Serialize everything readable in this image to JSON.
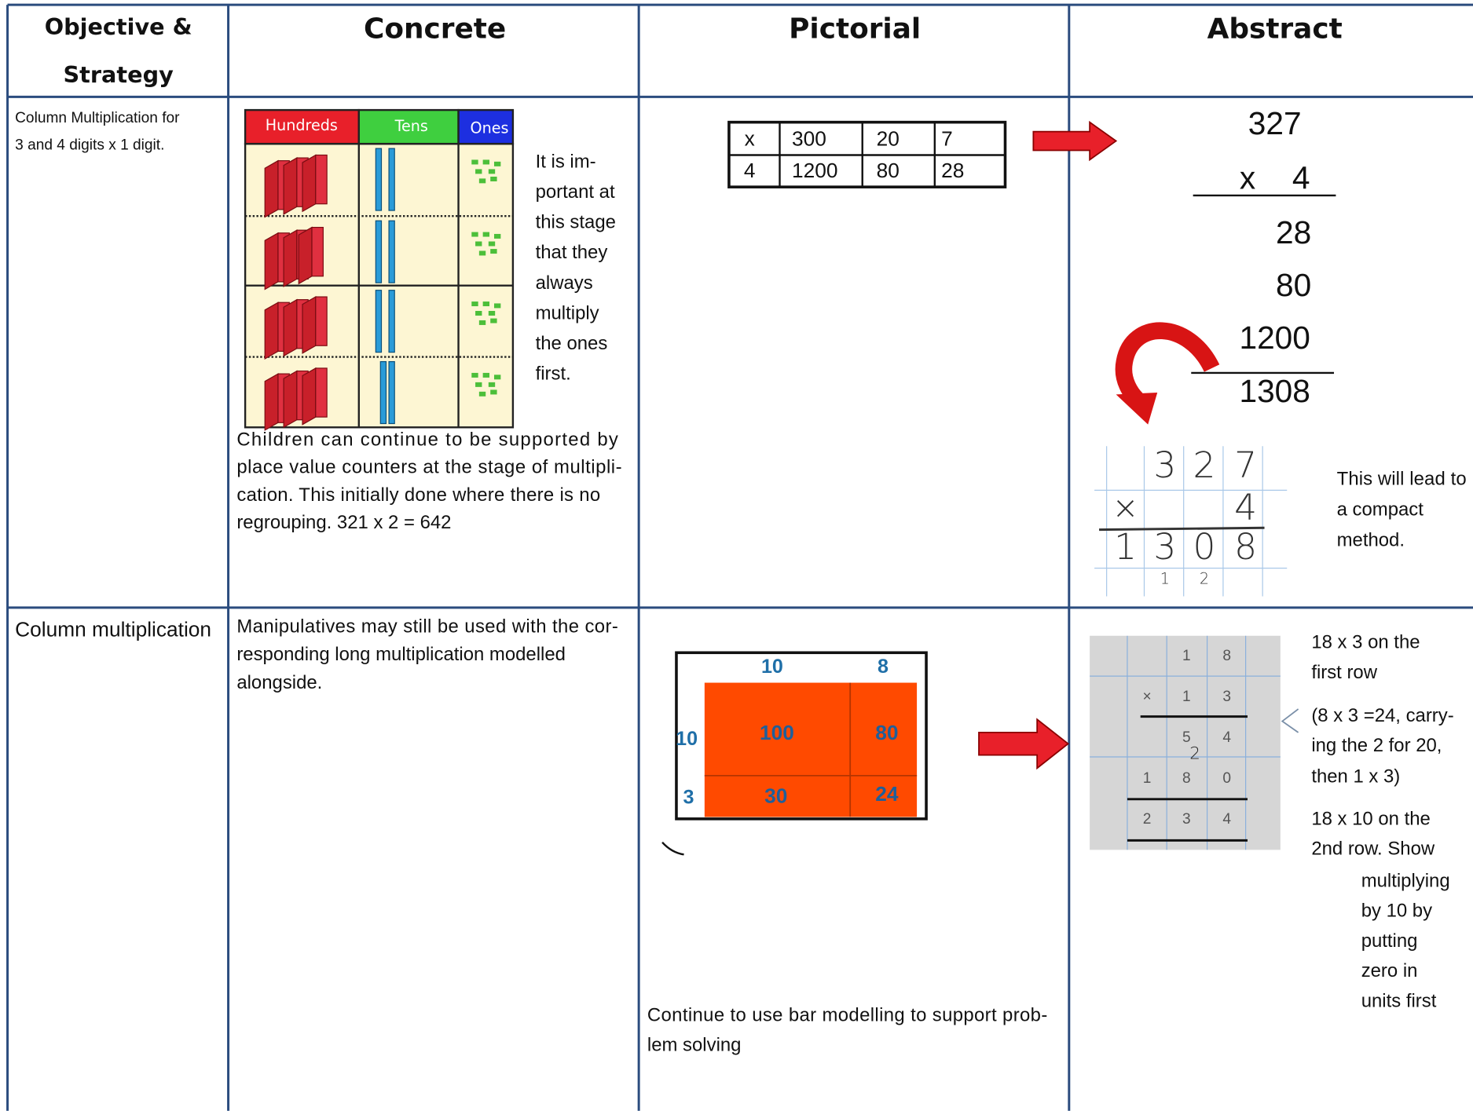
{
  "header": {
    "objective": [
      "Objective &",
      "Strategy"
    ],
    "concrete": "Concrete",
    "pictorial": "Pictorial",
    "abstract": "Abstract"
  },
  "rows": [
    {
      "objective": [
        "Column Multiplication for",
        "3 and 4 digits x 1 digit."
      ],
      "concrete": {
        "chart_headers": [
          "Hundreds",
          "Tens",
          "Ones"
        ],
        "note": [
          "It is im-",
          "portant at",
          "this stage",
          "that they",
          "always",
          "multiply",
          "the ones",
          "first."
        ],
        "caption": [
          "Children can continue to be supported by",
          "place value counters at the stage of multipli-",
          "cation. This initially done where there is no",
          "regrouping. 321 x 2 = 642"
        ]
      },
      "pictorial": {
        "grid": [
          [
            "x",
            "300",
            "20",
            "7"
          ],
          [
            "4",
            "1200",
            "80",
            "28"
          ]
        ]
      },
      "abstract": {
        "column": [
          "327",
          "x",
          "4",
          "28",
          "80",
          "1200",
          "1308"
        ],
        "handwritten": {
          "top": [
            "3",
            "2",
            "7"
          ],
          "times": "×",
          "multiplier": "4",
          "answer": [
            "1",
            "3",
            "0",
            "8"
          ],
          "carries": [
            "1",
            "2"
          ]
        },
        "note": [
          "This will lead to",
          "a compact",
          "method."
        ]
      }
    },
    {
      "objective": [
        "Column multiplication"
      ],
      "concrete": {
        "caption": [
          "Manipulatives may still be used with the cor-",
          "responding long multiplication modelled",
          "alongside."
        ]
      },
      "pictorial": {
        "area_model": {
          "top": [
            "10",
            "8"
          ],
          "side": [
            "10",
            "3"
          ],
          "cells": [
            [
              "100",
              "80"
            ],
            [
              "30",
              "24"
            ]
          ]
        },
        "caption": [
          "Continue to use bar modelling to support prob-",
          "lem solving"
        ]
      },
      "abstract": {
        "grid": [
          [
            "1",
            "8"
          ],
          [
            "×",
            "1",
            "3"
          ],
          [
            "5",
            "4"
          ],
          [
            "1",
            "8",
            "0"
          ],
          [
            "2",
            "3",
            "4"
          ]
        ],
        "carry": "2",
        "note": [
          "18 x 3 on the",
          "first row",
          "(8 x 3 =24, carry-",
          "ing the 2 for 20,",
          "then 1 x 3)",
          "18 x 10 on the",
          "2nd row. Show",
          "multiplying",
          "by 10 by",
          "putting",
          "zero in",
          "units first"
        ]
      }
    }
  ]
}
